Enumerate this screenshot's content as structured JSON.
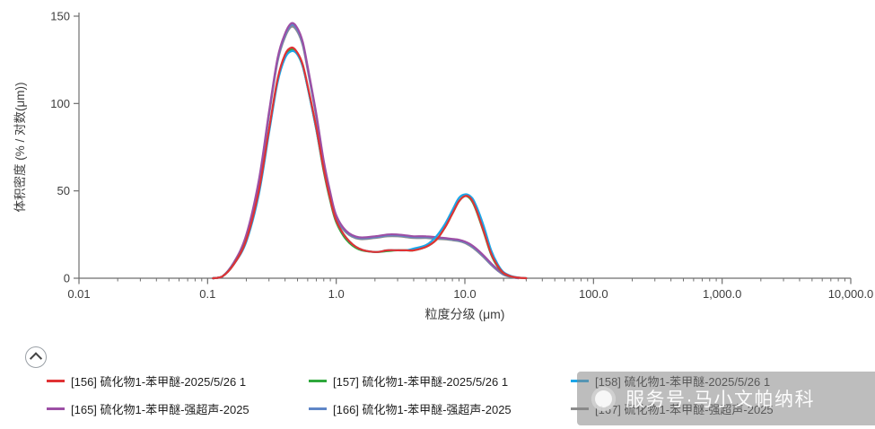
{
  "chart_data": {
    "type": "line",
    "title": "",
    "xlabel": "粒度分级 (μm)",
    "ylabel": "体积密度 (% / 对数(μm))",
    "x_scale": "log",
    "xlim": [
      0.01,
      10000
    ],
    "ylim": [
      0,
      150
    ],
    "grid": false,
    "legend_position": "bottom",
    "xticks": [
      {
        "value": 0.01,
        "label": "0.01"
      },
      {
        "value": 0.1,
        "label": "0.1"
      },
      {
        "value": 1.0,
        "label": "1.0"
      },
      {
        "value": 10.0,
        "label": "10.0"
      },
      {
        "value": 100.0,
        "label": "100.0"
      },
      {
        "value": 1000.0,
        "label": "1,000.0"
      },
      {
        "value": 10000.0,
        "label": "10,000.0"
      }
    ],
    "yticks": [
      0,
      50,
      100,
      150
    ],
    "series": [
      {
        "name": "[156] 硫化物1-苯甲醚-2025/5/26 1",
        "color": "#e03234",
        "x": [
          0.11,
          0.13,
          0.16,
          0.2,
          0.25,
          0.3,
          0.35,
          0.4,
          0.45,
          0.5,
          0.55,
          0.6,
          0.7,
          0.8,
          0.9,
          1.0,
          1.2,
          1.5,
          2.0,
          2.5,
          3.0,
          3.5,
          4.0,
          5.0,
          6.0,
          7.0,
          8.0,
          9.0,
          10.0,
          11.0,
          12.0,
          14.0,
          16.0,
          18.0,
          20.0,
          23.0,
          26.0,
          30.0
        ],
        "y": [
          0,
          1,
          8,
          22,
          50,
          85,
          114,
          128,
          132,
          129,
          122,
          110,
          86,
          62,
          45,
          33,
          23,
          17,
          15,
          16,
          16,
          16,
          16,
          18,
          22,
          29,
          37,
          44,
          47,
          46,
          41,
          27,
          14,
          7,
          3,
          1,
          0.3,
          0
        ]
      },
      {
        "name": "[157] 硫化物1-苯甲醚-2025/5/26 1",
        "color": "#2fa83c",
        "x": [
          0.11,
          0.13,
          0.16,
          0.2,
          0.25,
          0.3,
          0.35,
          0.4,
          0.45,
          0.5,
          0.55,
          0.6,
          0.7,
          0.8,
          0.9,
          1.0,
          1.2,
          1.5,
          2.0,
          2.5,
          3.0,
          3.5,
          4.0,
          5.0,
          6.0,
          7.0,
          8.0,
          9.0,
          10.0,
          11.0,
          12.0,
          14.0,
          16.0,
          18.0,
          20.0,
          23.0,
          26.0,
          30.0
        ],
        "y": [
          0,
          1,
          8,
          22,
          49,
          84,
          113,
          127,
          131,
          128,
          121,
          109,
          85,
          61,
          44,
          32,
          22,
          16.5,
          15,
          15.5,
          16,
          16,
          16,
          18,
          22,
          29,
          37,
          44,
          47,
          45.5,
          40.5,
          26.5,
          13.5,
          6.5,
          2.8,
          0.9,
          0.3,
          0
        ]
      },
      {
        "name": "[158] 硫化物1-苯甲醚-2025/5/26 1",
        "color": "#1ca6e8",
        "x": [
          0.11,
          0.13,
          0.16,
          0.2,
          0.25,
          0.3,
          0.35,
          0.4,
          0.45,
          0.5,
          0.55,
          0.6,
          0.7,
          0.8,
          0.9,
          1.0,
          1.2,
          1.5,
          2.0,
          2.5,
          3.0,
          3.5,
          4.0,
          5.0,
          6.0,
          7.0,
          8.0,
          9.0,
          10.0,
          11.0,
          12.0,
          14.0,
          16.0,
          18.0,
          20.0,
          23.0,
          26.0,
          30.0
        ],
        "y": [
          0,
          1,
          8,
          21,
          48,
          83,
          112,
          126,
          130,
          128,
          121,
          109,
          85,
          62,
          45,
          33,
          23,
          17,
          15,
          16,
          16,
          16,
          17,
          19,
          24,
          31,
          39,
          46,
          48,
          47,
          43,
          30,
          16,
          8,
          3.5,
          1.2,
          0.4,
          0
        ]
      },
      {
        "name": "[165] 硫化物1-苯甲醚-强超声-2025",
        "color": "#9d4fa5",
        "x": [
          0.11,
          0.13,
          0.16,
          0.2,
          0.25,
          0.3,
          0.35,
          0.4,
          0.45,
          0.5,
          0.55,
          0.6,
          0.7,
          0.8,
          0.9,
          1.0,
          1.2,
          1.5,
          2.0,
          2.5,
          3.0,
          3.5,
          4.0,
          5.0,
          6.0,
          7.0,
          8.0,
          9.0,
          10.0,
          11.0,
          12.0,
          14.0,
          16.0,
          18.0,
          20.0,
          23.0,
          26.0
        ],
        "y": [
          0,
          1,
          9,
          25,
          56,
          95,
          126,
          140,
          146,
          143,
          135,
          121,
          94,
          67,
          49,
          36,
          27,
          23.5,
          24,
          25,
          25,
          24.5,
          24,
          24,
          23.5,
          23,
          22.5,
          22,
          21,
          19.5,
          17.5,
          13,
          8.5,
          5,
          2.5,
          0.8,
          0
        ]
      },
      {
        "name": "[166] 硫化物1-苯甲醚-强超声-2025",
        "color": "#5f86c7",
        "x": [
          0.11,
          0.13,
          0.16,
          0.2,
          0.25,
          0.3,
          0.35,
          0.4,
          0.45,
          0.5,
          0.55,
          0.6,
          0.7,
          0.8,
          0.9,
          1.0,
          1.2,
          1.5,
          2.0,
          2.5,
          3.0,
          3.5,
          4.0,
          5.0,
          6.0,
          7.0,
          8.0,
          9.0,
          10.0,
          11.0,
          12.0,
          14.0,
          16.0,
          18.0,
          20.0,
          23.0,
          26.0
        ],
        "y": [
          0,
          1,
          9,
          24,
          55,
          94,
          125,
          139,
          145,
          142,
          134,
          120,
          93,
          66,
          48,
          35,
          26.5,
          23,
          23.5,
          24.5,
          24.5,
          24,
          23.5,
          23.5,
          23,
          22.8,
          22.2,
          21.6,
          20.6,
          19,
          17,
          12.5,
          8,
          4.6,
          2.2,
          0.7,
          0
        ]
      },
      {
        "name": "[167] 硫化物1-苯甲醚-强超声-2025",
        "color": "#8c8c8c",
        "x": [
          0.11,
          0.13,
          0.16,
          0.2,
          0.25,
          0.3,
          0.35,
          0.4,
          0.45,
          0.5,
          0.55,
          0.6,
          0.7,
          0.8,
          0.9,
          1.0,
          1.2,
          1.5,
          2.0,
          2.5,
          3.0,
          3.5,
          4.0,
          5.0,
          6.0,
          7.0,
          8.0,
          9.0,
          10.0,
          11.0,
          12.0,
          14.0,
          16.0,
          18.0,
          20.0,
          23.0,
          26.0
        ],
        "y": [
          0,
          1,
          9,
          24,
          54,
          93,
          124,
          138,
          144,
          141,
          133,
          119,
          92,
          65,
          47.5,
          34.5,
          26,
          22.5,
          23,
          24,
          24,
          23.5,
          23,
          23,
          22.5,
          22.3,
          21.8,
          21.2,
          20.2,
          18.5,
          16.5,
          12,
          7.6,
          4.3,
          2,
          0.6,
          0
        ]
      }
    ]
  },
  "watermark": {
    "text": "服务号·马小文帕纳科"
  }
}
